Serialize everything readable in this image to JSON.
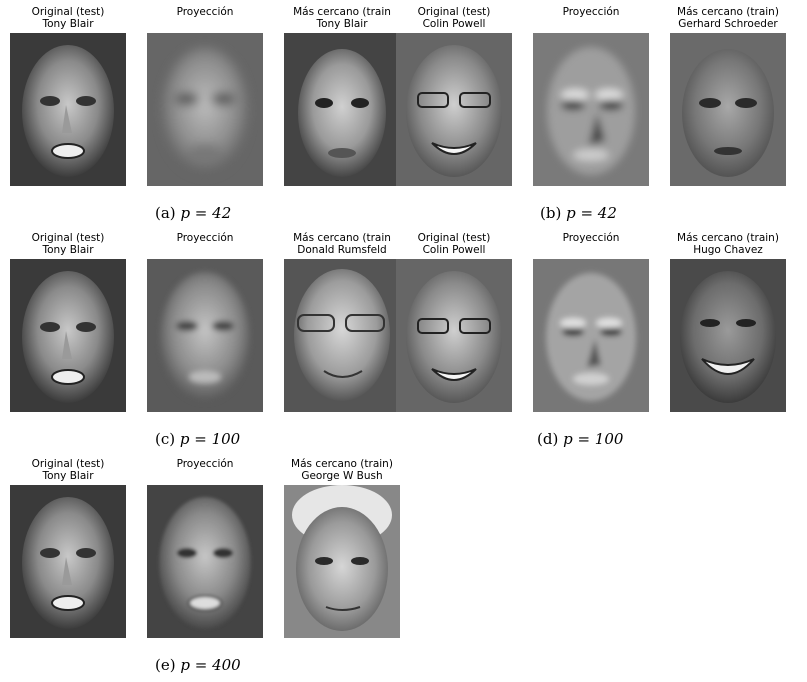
{
  "figure": {
    "panels": [
      {
        "id": "a",
        "caption_label": "(a)",
        "caption_math": "p = 42",
        "images": [
          {
            "title_line1": "Original (test)",
            "title_line2": "Tony Blair",
            "kind": "original"
          },
          {
            "title_line1": "Proyección",
            "title_line2": "",
            "kind": "projection-blurry"
          },
          {
            "title_line1": "Más cercano (train",
            "title_line2": "Tony Blair",
            "kind": "nearest"
          }
        ]
      },
      {
        "id": "b",
        "caption_label": "(b)",
        "caption_math": "p = 42",
        "images": [
          {
            "title_line1": "Original (test)",
            "title_line2": "Colin Powell",
            "kind": "original"
          },
          {
            "title_line1": "Proyección",
            "title_line2": "",
            "kind": "projection-blurry"
          },
          {
            "title_line1": "Más cercano (train)",
            "title_line2": "Gerhard Schroeder",
            "kind": "nearest"
          }
        ]
      },
      {
        "id": "c",
        "caption_label": "(c)",
        "caption_math": "p = 100",
        "images": [
          {
            "title_line1": "Original (test)",
            "title_line2": "Tony Blair",
            "kind": "original"
          },
          {
            "title_line1": "Proyección",
            "title_line2": "",
            "kind": "projection"
          },
          {
            "title_line1": "Más cercano (train",
            "title_line2": "Donald Rumsfeld",
            "kind": "nearest"
          }
        ]
      },
      {
        "id": "d",
        "caption_label": "(d)",
        "caption_math": "p = 100",
        "images": [
          {
            "title_line1": "Original (test)",
            "title_line2": "Colin Powell",
            "kind": "original"
          },
          {
            "title_line1": "Proyección",
            "title_line2": "",
            "kind": "projection"
          },
          {
            "title_line1": "Más cercano (train)",
            "title_line2": "Hugo Chavez",
            "kind": "nearest"
          }
        ]
      },
      {
        "id": "e",
        "caption_label": "(e)",
        "caption_math": "p = 400",
        "images": [
          {
            "title_line1": "Original (test)",
            "title_line2": "Tony Blair",
            "kind": "original"
          },
          {
            "title_line1": "Proyección",
            "title_line2": "",
            "kind": "projection-sharp"
          },
          {
            "title_line1": "Más cercano (train)",
            "title_line2": "George W Bush",
            "kind": "nearest"
          }
        ]
      }
    ]
  }
}
